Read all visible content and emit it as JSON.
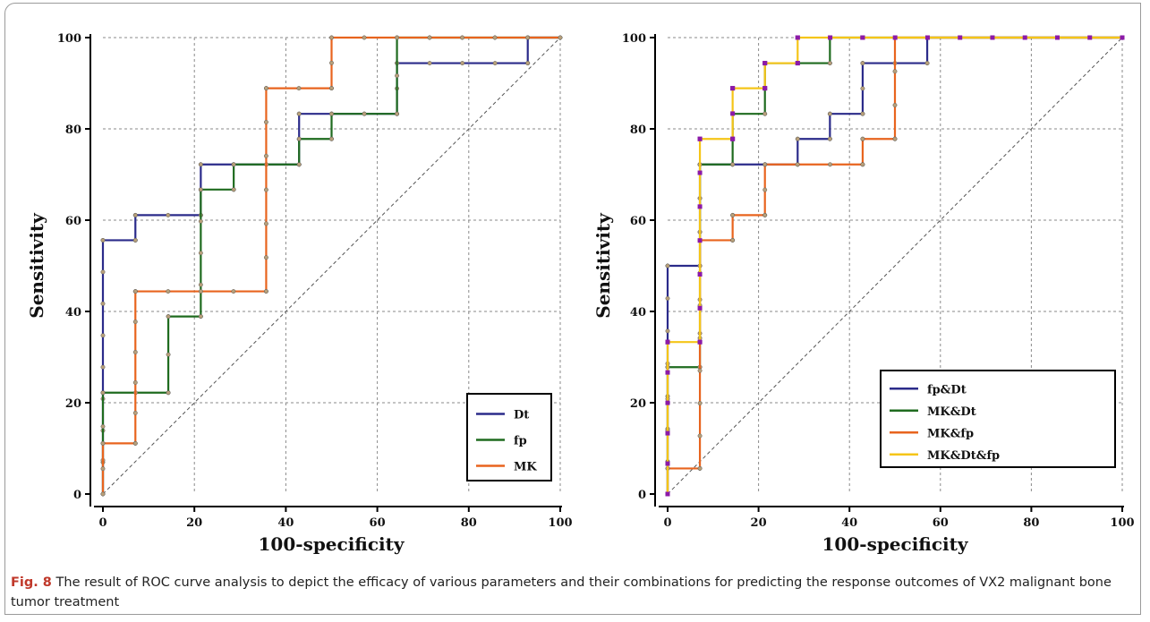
{
  "caption": {
    "label": "Fig. 8",
    "text": "The result of ROC curve analysis to depict the efficacy of various parameters and their combinations for predicting the response outcomes of VX2 malignant bone tumor treatment"
  },
  "chart_data": [
    {
      "type": "line",
      "xlabel": "100-specificity",
      "ylabel": "Sensitivity",
      "xlim": [
        0,
        100
      ],
      "ylim": [
        0,
        100
      ],
      "xticks": [
        "0",
        "20",
        "40",
        "60",
        "80",
        "100"
      ],
      "yticks": [
        "0",
        "20",
        "40",
        "60",
        "80",
        "100"
      ],
      "grid": true,
      "legend_position": "bottom-right",
      "diagonal_reference": true,
      "series": [
        {
          "name": "Dt",
          "color": "#2b2b8a",
          "marker_color": "#b8a07a",
          "x": [
            0,
            0,
            7.1,
            7.1,
            21.4,
            21.4,
            42.9,
            42.9,
            64.3,
            64.3,
            92.9,
            92.9,
            100
          ],
          "y": [
            0,
            55.6,
            55.6,
            61.1,
            61.1,
            72.2,
            72.2,
            83.3,
            83.3,
            94.4,
            94.4,
            100,
            100
          ]
        },
        {
          "name": "fp",
          "color": "#1f6b1f",
          "marker_color": "#b8a07a",
          "x": [
            0,
            0,
            14.3,
            14.3,
            21.4,
            21.4,
            28.6,
            28.6,
            42.9,
            42.9,
            50,
            50,
            64.3,
            64.3,
            100
          ],
          "y": [
            0,
            22.2,
            22.2,
            38.9,
            38.9,
            66.7,
            66.7,
            72.2,
            72.2,
            77.8,
            77.8,
            83.3,
            83.3,
            100,
            100
          ]
        },
        {
          "name": "MK",
          "color": "#e8641e",
          "marker_color": "#b8a07a",
          "x": [
            0,
            0,
            7.1,
            7.1,
            35.7,
            35.7,
            50,
            50,
            100
          ],
          "y": [
            0,
            11.1,
            11.1,
            44.4,
            44.4,
            88.9,
            88.9,
            100,
            100
          ]
        }
      ]
    },
    {
      "type": "line",
      "xlabel": "100-specificity",
      "ylabel": "Sensitivity",
      "xlim": [
        0,
        100
      ],
      "ylim": [
        0,
        100
      ],
      "xticks": [
        "0",
        "20",
        "40",
        "60",
        "80",
        "100"
      ],
      "yticks": [
        "0",
        "20",
        "40",
        "60",
        "80",
        "100"
      ],
      "grid": true,
      "legend_position": "bottom-right",
      "diagonal_reference": true,
      "series": [
        {
          "name": "fp&Dt",
          "color": "#2b2b8a",
          "marker_color": "#b8a07a",
          "x": [
            0,
            0,
            7.1,
            7.1,
            28.6,
            28.6,
            35.7,
            35.7,
            42.9,
            42.9,
            57.1,
            57.1,
            100
          ],
          "y": [
            0,
            50,
            50,
            72.2,
            72.2,
            77.8,
            77.8,
            83.3,
            83.3,
            94.4,
            94.4,
            100,
            100
          ]
        },
        {
          "name": "MK&Dt",
          "color": "#1f6b1f",
          "marker_color": "#b8a07a",
          "x": [
            0,
            0,
            7.1,
            7.1,
            14.3,
            14.3,
            21.4,
            21.4,
            35.7,
            35.7,
            100
          ],
          "y": [
            0,
            27.8,
            27.8,
            72.2,
            72.2,
            83.3,
            83.3,
            94.4,
            94.4,
            100,
            100
          ]
        },
        {
          "name": "MK&fp",
          "color": "#e8641e",
          "marker_color": "#b8a07a",
          "x": [
            0,
            0,
            7.1,
            7.1,
            14.3,
            14.3,
            21.4,
            21.4,
            42.9,
            42.9,
            50,
            50,
            100
          ],
          "y": [
            0,
            5.6,
            5.6,
            55.6,
            55.6,
            61.1,
            61.1,
            72.2,
            72.2,
            77.8,
            77.8,
            100,
            100
          ]
        },
        {
          "name": "MK&Dt&fp",
          "color": "#f5c518",
          "marker_color": "#8b1aa8",
          "x": [
            0,
            0,
            7.1,
            7.1,
            14.3,
            14.3,
            21.4,
            21.4,
            28.6,
            28.6,
            42.9,
            42.9,
            100
          ],
          "y": [
            0,
            33.3,
            33.3,
            77.8,
            77.8,
            88.9,
            88.9,
            94.4,
            94.4,
            100,
            100,
            100,
            100
          ]
        }
      ]
    }
  ]
}
